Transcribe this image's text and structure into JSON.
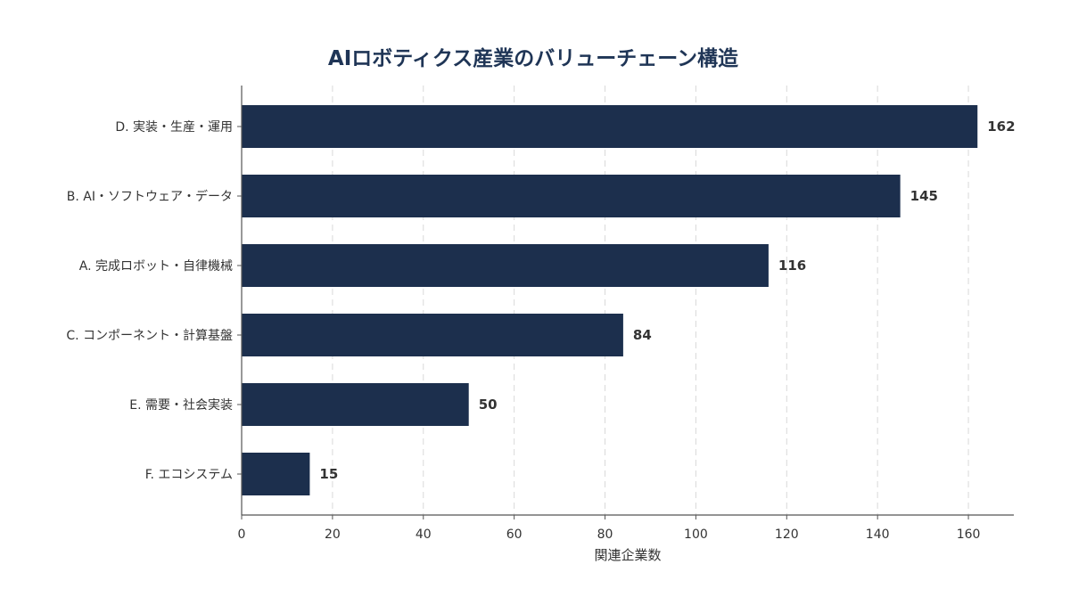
{
  "chart_data": {
    "type": "bar",
    "orientation": "horizontal",
    "title": "AIロボティクス産業のバリューチェーン構造",
    "xlabel": "関連企業数",
    "ylabel": "",
    "categories": [
      "D. 実装・生産・運用",
      "B. AI・ソフトウェア・データ",
      "A. 完成ロボット・自律機械",
      "C. コンポーネント・計算基盤",
      "E. 需要・社会実装",
      "F. エコシステム"
    ],
    "values": [
      162,
      145,
      116,
      84,
      50,
      15
    ],
    "xlim": [
      0,
      170
    ],
    "xticks": [
      0,
      20,
      40,
      60,
      80,
      100,
      120,
      140,
      160
    ],
    "grid": "vertical dashed",
    "legend": "none",
    "data_labels": true
  },
  "colors": {
    "bar": "#1c2f4d",
    "title": "#1f3556",
    "text": "#333333",
    "grid": "#d9d9d9",
    "axis": "#555555"
  }
}
